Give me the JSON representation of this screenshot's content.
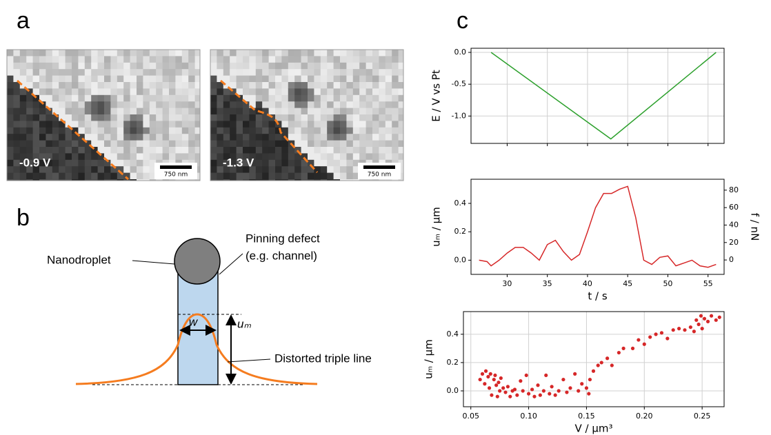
{
  "panels": {
    "a": {
      "label": "a",
      "images": [
        {
          "voltage": "-0.9 V",
          "scale_bar": "750 nm"
        },
        {
          "voltage": "-1.3 V",
          "scale_bar": "750 nm"
        }
      ]
    },
    "b": {
      "label": "b",
      "droplet": "Nanodroplet",
      "defect": [
        "Pinning defect",
        "(e.g. channel)"
      ],
      "amplitude": "uₘ",
      "width": "w",
      "triple_line": "Distorted triple line"
    },
    "c": {
      "label": "c"
    }
  },
  "chart_data": [
    {
      "type": "line",
      "ylabel": "E / V vs Pt",
      "color": "#2ca02c",
      "x": [
        28,
        42.9,
        56
      ],
      "values": [
        0,
        -1.36,
        0
      ],
      "xlim": [
        25.5,
        57
      ],
      "xticks": [
        30,
        35,
        40,
        45,
        50,
        55
      ],
      "xticklabels": false,
      "ylim": [
        -1.43,
        0.065
      ],
      "yticks": [
        {
          "value": 0,
          "label": "0.0"
        },
        -0.5,
        {
          "value": -1,
          "label": "-1.0"
        }
      ],
      "grid": true
    },
    {
      "type": "line",
      "xlabel": "t / s",
      "ylabel": "uₘ / µm",
      "y2label": "f / nN",
      "color": "#d62728",
      "x": [
        26.5,
        27.5,
        28,
        29,
        30,
        31,
        32,
        33,
        34,
        35,
        36,
        37,
        38,
        39,
        40,
        41,
        42,
        43,
        44,
        45,
        46,
        47,
        48,
        49,
        50,
        51,
        52,
        53,
        54,
        55,
        56
      ],
      "values": [
        0,
        -0.01,
        -0.04,
        0,
        0.05,
        0.09,
        0.09,
        0.05,
        0,
        0.11,
        0.14,
        0.06,
        0,
        0.04,
        0.2,
        0.37,
        0.47,
        0.47,
        0.5,
        0.52,
        0.3,
        0,
        -0.03,
        0.02,
        0.03,
        -0.04,
        -0.02,
        0,
        -0.04,
        -0.05,
        -0.03
      ],
      "xlim": [
        25.5,
        57
      ],
      "xticks": [
        30,
        35,
        40,
        45,
        50,
        55
      ],
      "ylim": [
        -0.1,
        0.57
      ],
      "yticks": [
        {
          "value": 0,
          "label": "0.0"
        },
        0.2,
        0.4
      ],
      "y2lim": [
        -16.5,
        92.5
      ],
      "y2ticks": [
        0,
        20,
        40,
        60,
        80
      ],
      "grid": false
    },
    {
      "type": "scatter",
      "xlabel": "V / µm³",
      "ylabel": "uₘ / µm",
      "color": "#d62728",
      "x": [
        0.058,
        0.06,
        0.062,
        0.063,
        0.065,
        0.066,
        0.067,
        0.068,
        0.07,
        0.071,
        0.072,
        0.073,
        0.074,
        0.075,
        0.076,
        0.078,
        0.08,
        0.082,
        0.084,
        0.086,
        0.088,
        0.09,
        0.093,
        0.095,
        0.098,
        0.1,
        0.103,
        0.105,
        0.108,
        0.11,
        0.113,
        0.115,
        0.118,
        0.12,
        0.123,
        0.126,
        0.13,
        0.133,
        0.136,
        0.14,
        0.143,
        0.146,
        0.15,
        0.152,
        0.153,
        0.156,
        0.16,
        0.163,
        0.168,
        0.172,
        0.178,
        0.182,
        0.19,
        0.195,
        0.2,
        0.205,
        0.21,
        0.215,
        0.22,
        0.225,
        0.23,
        0.235,
        0.24,
        0.243,
        0.245,
        0.247,
        0.249,
        0.25,
        0.252,
        0.255,
        0.258,
        0.262,
        0.265
      ],
      "values": [
        0.08,
        0.12,
        0.05,
        0.14,
        0.1,
        0.02,
        0.12,
        -0.03,
        0.08,
        0.11,
        0.04,
        -0.04,
        0.06,
        0,
        0.09,
        0.02,
        -0.01,
        0.03,
        -0.04,
        0,
        0.01,
        -0.03,
        0.07,
        0,
        0.11,
        -0.02,
        0.01,
        -0.04,
        0.04,
        -0.03,
        0,
        0.11,
        -0.02,
        0.03,
        -0.03,
        0,
        0.08,
        -0.01,
        0.02,
        0.12,
        0,
        0.05,
        0.02,
        -0.02,
        0.08,
        0.14,
        0.18,
        0.2,
        0.23,
        0.18,
        0.27,
        0.3,
        0.3,
        0.36,
        0.33,
        0.38,
        0.4,
        0.41,
        0.37,
        0.43,
        0.44,
        0.43,
        0.45,
        0.42,
        0.5,
        0.47,
        0.53,
        0.44,
        0.51,
        0.49,
        0.53,
        0.5,
        0.52
      ],
      "xlim": [
        0.0436,
        0.269
      ],
      "xticks": [
        0.05,
        {
          "value": 0.1,
          "label": "0.10"
        },
        0.15,
        {
          "value": 0.2,
          "label": "0.20"
        },
        0.25
      ],
      "ylim": [
        -0.112,
        0.56
      ],
      "yticks": [
        {
          "value": 0,
          "label": "0.0"
        },
        0.2,
        0.4
      ],
      "grid": true
    }
  ]
}
